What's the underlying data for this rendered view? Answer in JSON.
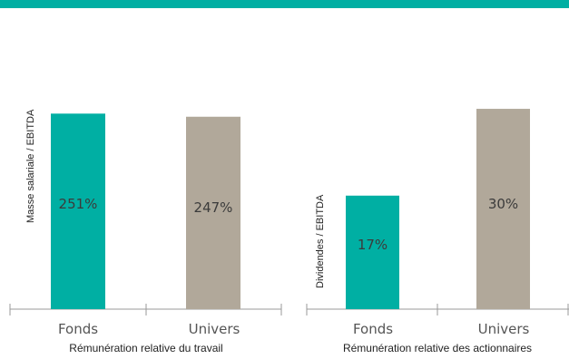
{
  "colors": {
    "accent": "#00AFA3",
    "neutral": "#B1A89A",
    "axis": "#9A9A9A"
  },
  "chart_data": [
    {
      "type": "bar",
      "title": "",
      "xlabel": "Rémunération relative du travail",
      "ylabel": "Masse salariale / EBITDA",
      "categories": [
        "Fonds",
        "Univers"
      ],
      "values": [
        251,
        247
      ],
      "value_labels": [
        "251%",
        "247%"
      ],
      "ylim": [
        0,
        270
      ]
    },
    {
      "type": "bar",
      "title": "",
      "xlabel": "Rémunération relative des actionnaires",
      "ylabel": "Dividendes / EBITDA",
      "categories": [
        "Fonds",
        "Univers"
      ],
      "values": [
        17,
        30
      ],
      "value_labels": [
        "17%",
        "30%"
      ],
      "ylim": [
        0,
        31.5
      ]
    }
  ]
}
